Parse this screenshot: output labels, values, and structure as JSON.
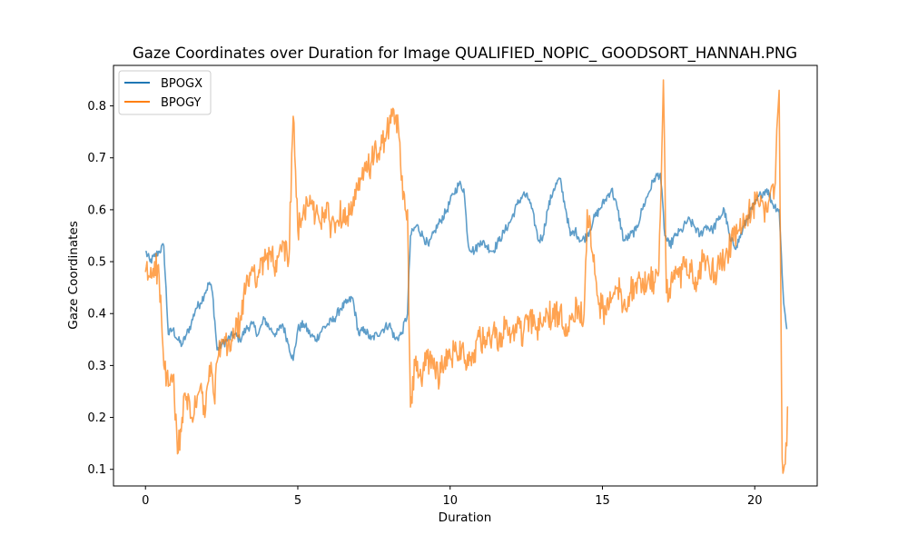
{
  "chart_data": {
    "type": "line",
    "title": "Gaze Coordinates over Duration for Image QUALIFIED_NOPIC_ GOODSORT_HANNAH.PNG",
    "xlabel": "Duration",
    "ylabel": "Gaze Coordinates",
    "xlim": [
      -1.05,
      22.05
    ],
    "ylim": [
      0.068,
      0.878
    ],
    "xticks": [
      0,
      5,
      10,
      15,
      20
    ],
    "yticks": [
      0.1,
      0.2,
      0.3,
      0.4,
      0.5,
      0.6,
      0.7,
      0.8
    ],
    "grid": false,
    "legend_position": "upper-left",
    "series": [
      {
        "name": "BPOGX",
        "color": "#1f77b4",
        "x": [
          0.0,
          0.15,
          0.3,
          0.45,
          0.6,
          0.75,
          0.9,
          1.05,
          1.2,
          1.35,
          1.5,
          1.65,
          1.8,
          1.95,
          2.1,
          2.2,
          2.35,
          2.5,
          2.7,
          2.9,
          3.1,
          3.3,
          3.5,
          3.7,
          3.9,
          4.1,
          4.3,
          4.5,
          4.7,
          4.85,
          5.0,
          5.2,
          5.4,
          5.6,
          5.8,
          6.0,
          6.2,
          6.4,
          6.6,
          6.8,
          7.0,
          7.2,
          7.4,
          7.6,
          7.8,
          8.0,
          8.2,
          8.4,
          8.6,
          8.7,
          8.9,
          9.1,
          9.3,
          9.5,
          9.7,
          9.9,
          10.1,
          10.3,
          10.45,
          10.6,
          10.8,
          11.0,
          11.2,
          11.4,
          11.6,
          11.8,
          12.0,
          12.2,
          12.4,
          12.6,
          12.8,
          12.9,
          13.05,
          13.2,
          13.4,
          13.6,
          13.8,
          13.95,
          14.1,
          14.3,
          14.5,
          14.7,
          14.9,
          15.1,
          15.3,
          15.5,
          15.7,
          15.9,
          16.1,
          16.3,
          16.5,
          16.7,
          16.9,
          17.05,
          17.2,
          17.4,
          17.6,
          17.8,
          18.0,
          18.2,
          18.4,
          18.6,
          18.8,
          19.0,
          19.2,
          19.4,
          19.6,
          19.8,
          20.0,
          20.2,
          20.4,
          20.6,
          20.8,
          20.95,
          21.05
        ],
        "values": [
          0.52,
          0.5,
          0.51,
          0.52,
          0.53,
          0.36,
          0.37,
          0.35,
          0.34,
          0.36,
          0.38,
          0.41,
          0.42,
          0.44,
          0.46,
          0.44,
          0.33,
          0.34,
          0.35,
          0.36,
          0.35,
          0.37,
          0.38,
          0.36,
          0.39,
          0.37,
          0.36,
          0.38,
          0.34,
          0.31,
          0.37,
          0.38,
          0.36,
          0.35,
          0.37,
          0.38,
          0.39,
          0.41,
          0.42,
          0.43,
          0.36,
          0.37,
          0.35,
          0.36,
          0.37,
          0.38,
          0.35,
          0.36,
          0.4,
          0.55,
          0.57,
          0.55,
          0.53,
          0.56,
          0.58,
          0.6,
          0.63,
          0.65,
          0.64,
          0.53,
          0.52,
          0.54,
          0.53,
          0.52,
          0.54,
          0.56,
          0.58,
          0.61,
          0.63,
          0.62,
          0.57,
          0.54,
          0.55,
          0.6,
          0.64,
          0.66,
          0.6,
          0.55,
          0.56,
          0.54,
          0.55,
          0.58,
          0.6,
          0.62,
          0.64,
          0.6,
          0.54,
          0.55,
          0.56,
          0.6,
          0.63,
          0.66,
          0.67,
          0.55,
          0.53,
          0.55,
          0.56,
          0.58,
          0.57,
          0.55,
          0.57,
          0.56,
          0.58,
          0.6,
          0.54,
          0.53,
          0.56,
          0.59,
          0.61,
          0.63,
          0.64,
          0.61,
          0.6,
          0.42,
          0.37
        ]
      },
      {
        "name": "BPOGY",
        "color": "#ff7f0e",
        "x": [
          0.0,
          0.15,
          0.3,
          0.45,
          0.6,
          0.75,
          0.9,
          1.05,
          1.2,
          1.35,
          1.5,
          1.65,
          1.8,
          1.95,
          2.1,
          2.25,
          2.4,
          2.55,
          2.7,
          2.9,
          3.1,
          3.3,
          3.5,
          3.7,
          3.9,
          4.1,
          4.3,
          4.5,
          4.7,
          4.85,
          5.0,
          5.15,
          5.3,
          5.5,
          5.7,
          5.9,
          6.1,
          6.3,
          6.5,
          6.7,
          6.9,
          7.1,
          7.3,
          7.5,
          7.7,
          7.9,
          8.1,
          8.3,
          8.45,
          8.6,
          8.7,
          8.85,
          9.0,
          9.2,
          9.4,
          9.6,
          9.8,
          10.0,
          10.2,
          10.4,
          10.6,
          10.8,
          11.0,
          11.2,
          11.4,
          11.6,
          11.8,
          12.0,
          12.2,
          12.4,
          12.6,
          12.8,
          13.0,
          13.2,
          13.4,
          13.6,
          13.8,
          14.0,
          14.2,
          14.4,
          14.5,
          14.7,
          14.9,
          15.1,
          15.3,
          15.5,
          15.7,
          15.9,
          16.1,
          16.3,
          16.5,
          16.7,
          16.85,
          17.0,
          17.1,
          17.3,
          17.5,
          17.7,
          17.9,
          18.1,
          18.3,
          18.5,
          18.7,
          18.9,
          19.1,
          19.3,
          19.5,
          19.7,
          19.9,
          20.1,
          20.3,
          20.5,
          20.65,
          20.8,
          20.9,
          21.0,
          21.1
        ],
        "values": [
          0.48,
          0.47,
          0.5,
          0.47,
          0.3,
          0.26,
          0.28,
          0.13,
          0.2,
          0.24,
          0.2,
          0.22,
          0.26,
          0.2,
          0.3,
          0.24,
          0.32,
          0.35,
          0.33,
          0.36,
          0.38,
          0.45,
          0.49,
          0.47,
          0.5,
          0.52,
          0.48,
          0.54,
          0.5,
          0.78,
          0.56,
          0.58,
          0.62,
          0.6,
          0.58,
          0.6,
          0.57,
          0.58,
          0.6,
          0.59,
          0.62,
          0.66,
          0.68,
          0.7,
          0.72,
          0.74,
          0.78,
          0.76,
          0.62,
          0.6,
          0.22,
          0.3,
          0.28,
          0.3,
          0.32,
          0.28,
          0.3,
          0.32,
          0.33,
          0.34,
          0.3,
          0.33,
          0.35,
          0.34,
          0.36,
          0.35,
          0.37,
          0.36,
          0.38,
          0.36,
          0.39,
          0.37,
          0.38,
          0.4,
          0.39,
          0.4,
          0.38,
          0.4,
          0.41,
          0.4,
          0.6,
          0.5,
          0.42,
          0.4,
          0.43,
          0.45,
          0.42,
          0.44,
          0.46,
          0.45,
          0.47,
          0.46,
          0.48,
          0.85,
          0.44,
          0.46,
          0.47,
          0.49,
          0.48,
          0.46,
          0.5,
          0.49,
          0.48,
          0.5,
          0.52,
          0.54,
          0.56,
          0.58,
          0.6,
          0.62,
          0.6,
          0.63,
          0.64,
          0.83,
          0.12,
          0.11,
          0.22
        ]
      }
    ]
  }
}
